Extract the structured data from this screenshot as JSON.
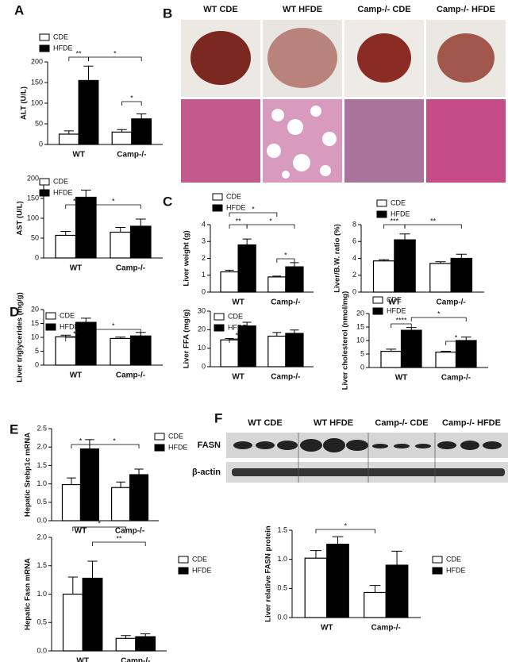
{
  "figure": {
    "panel_labels": [
      "A",
      "B",
      "C",
      "D",
      "E",
      "F"
    ],
    "histology_headers": [
      "WT CDE",
      "WT HFDE",
      "Camp-/- CDE",
      "Camp-/- HFDE"
    ],
    "blot": {
      "groups": [
        "WT CDE",
        "WT HFDE",
        "Camp-/- CDE",
        "Camp-/- HFDE"
      ],
      "rows": [
        "FASN",
        "β-actin"
      ]
    }
  },
  "chart_data": [
    {
      "type": "bar",
      "ylabel": "ALT (U/L)",
      "categories": [
        "WT",
        "Camp-/-"
      ],
      "ylim": [
        0,
        200
      ],
      "yticks": [
        0,
        50,
        100,
        150,
        200
      ],
      "series": [
        {
          "name": "CDE",
          "color": "#ffffff",
          "values": [
            25,
            30
          ],
          "errors": [
            8,
            6
          ]
        },
        {
          "name": "HFDE",
          "color": "#000000",
          "values": [
            155,
            62
          ],
          "errors": [
            35,
            12
          ]
        }
      ],
      "annotations": [
        "**",
        "*",
        "*"
      ]
    },
    {
      "type": "bar",
      "ylabel": "AST (U/L)",
      "categories": [
        "WT",
        "Camp-/-"
      ],
      "ylim": [
        0,
        200
      ],
      "yticks": [
        0,
        50,
        100,
        150,
        200
      ],
      "series": [
        {
          "name": "CDE",
          "color": "#ffffff",
          "values": [
            57,
            65
          ],
          "errors": [
            10,
            12
          ]
        },
        {
          "name": "HFDE",
          "color": "#000000",
          "values": [
            153,
            80
          ],
          "errors": [
            18,
            18
          ]
        }
      ],
      "annotations": [
        "**",
        "*"
      ]
    },
    {
      "type": "bar",
      "ylabel": "Liver weight (g)",
      "categories": [
        "WT",
        "Camp-/-"
      ],
      "ylim": [
        0,
        4
      ],
      "yticks": [
        0,
        1,
        2,
        3,
        4
      ],
      "series": [
        {
          "name": "CDE",
          "color": "#ffffff",
          "values": [
            1.2,
            0.9
          ],
          "errors": [
            0.1,
            0.05
          ]
        },
        {
          "name": "HFDE",
          "color": "#000000",
          "values": [
            2.8,
            1.5
          ],
          "errors": [
            0.35,
            0.25
          ]
        }
      ],
      "annotations": [
        "*",
        "**",
        "*",
        "*"
      ]
    },
    {
      "type": "bar",
      "ylabel": "Liver/B.W. ratio (%)",
      "categories": [
        "WT",
        "Camp-/-"
      ],
      "ylim": [
        0,
        8
      ],
      "yticks": [
        0,
        2,
        4,
        6,
        8
      ],
      "series": [
        {
          "name": "CDE",
          "color": "#ffffff",
          "values": [
            3.7,
            3.4
          ],
          "errors": [
            0.15,
            0.2
          ]
        },
        {
          "name": "HFDE",
          "color": "#000000",
          "values": [
            6.2,
            4.0
          ],
          "errors": [
            0.7,
            0.5
          ]
        }
      ],
      "annotations": [
        "***",
        "**"
      ]
    },
    {
      "type": "bar",
      "ylabel": "Liver triglycerides (mg/g)",
      "categories": [
        "WT",
        "Camp-/-"
      ],
      "ylim": [
        0,
        20
      ],
      "yticks": [
        0,
        5,
        10,
        15,
        20
      ],
      "series": [
        {
          "name": "CDE",
          "color": "#ffffff",
          "values": [
            10.2,
            9.6
          ],
          "errors": [
            0.6,
            0.5
          ]
        },
        {
          "name": "HFDE",
          "color": "#000000",
          "values": [
            15.4,
            10.5
          ],
          "errors": [
            1.5,
            1.3
          ]
        }
      ],
      "annotations": [
        "**",
        "*"
      ]
    },
    {
      "type": "bar",
      "ylabel": "Liver FFA (mg/g)",
      "categories": [
        "WT",
        "Camp-/-"
      ],
      "ylim": [
        0,
        30
      ],
      "yticks": [
        0,
        10,
        20,
        30
      ],
      "series": [
        {
          "name": "CDE",
          "color": "#ffffff",
          "values": [
            14.5,
            16.5
          ],
          "errors": [
            0.7,
            2
          ]
        },
        {
          "name": "HFDE",
          "color": "#000000",
          "values": [
            22,
            18
          ],
          "errors": [
            2,
            1.8
          ]
        }
      ],
      "annotations": [
        "**"
      ]
    },
    {
      "type": "bar",
      "ylabel": "Liver cholesterol (nmol/mg)",
      "categories": [
        "WT",
        "Camp-/-"
      ],
      "ylim": [
        0,
        20
      ],
      "yticks": [
        0,
        5,
        10,
        15,
        20
      ],
      "series": [
        {
          "name": "CDE",
          "color": "#ffffff",
          "values": [
            6,
            5.7
          ],
          "errors": [
            0.8,
            0.3
          ]
        },
        {
          "name": "HFDE",
          "color": "#000000",
          "values": [
            13.8,
            10
          ],
          "errors": [
            1.0,
            1.3
          ]
        }
      ],
      "annotations": [
        "****",
        "*",
        "*"
      ]
    },
    {
      "type": "bar",
      "ylabel": "Hepatic Srebp1c mRNA",
      "categories": [
        "WT",
        "Camp-/-"
      ],
      "ylim": [
        0,
        2.5
      ],
      "yticks": [
        {
          "value": 0,
          "label": "0.0"
        },
        0.5,
        {
          "value": 1,
          "label": "1.0"
        },
        1.5,
        {
          "value": 2,
          "label": "2.0"
        },
        2.5
      ],
      "series": [
        {
          "name": "CDE",
          "color": "#ffffff",
          "values": [
            0.98,
            0.9
          ],
          "errors": [
            0.18,
            0.15
          ]
        },
        {
          "name": "HFDE",
          "color": "#000000",
          "values": [
            1.95,
            1.25
          ],
          "errors": [
            0.25,
            0.15
          ]
        }
      ],
      "annotations": [
        "*",
        "*"
      ]
    },
    {
      "type": "bar",
      "ylabel": "Hepatic Fasn mRNA",
      "categories": [
        "WT",
        "Camp-/-"
      ],
      "ylim": [
        0,
        2
      ],
      "yticks": [
        {
          "value": 0,
          "label": "0.0"
        },
        0.5,
        {
          "value": 1,
          "label": "1.0"
        },
        1.5,
        {
          "value": 2,
          "label": "2.0"
        }
      ],
      "series": [
        {
          "name": "CDE",
          "color": "#ffffff",
          "values": [
            1.0,
            0.22
          ],
          "errors": [
            0.3,
            0.05
          ]
        },
        {
          "name": "HFDE",
          "color": "#000000",
          "values": [
            1.28,
            0.25
          ],
          "errors": [
            0.3,
            0.05
          ]
        }
      ],
      "annotations": [
        "*",
        "**"
      ]
    },
    {
      "type": "bar",
      "ylabel": "Liver relative FASN protein",
      "categories": [
        "WT",
        "Camp-/-"
      ],
      "ylim": [
        0,
        1.5
      ],
      "yticks": [
        {
          "value": 0,
          "label": "0.0"
        },
        0.5,
        {
          "value": 1,
          "label": "1.0"
        },
        1.5
      ],
      "series": [
        {
          "name": "CDE",
          "color": "#ffffff",
          "values": [
            1.02,
            0.43
          ],
          "errors": [
            0.13,
            0.12
          ]
        },
        {
          "name": "HFDE",
          "color": "#000000",
          "values": [
            1.26,
            0.9
          ],
          "errors": [
            0.13,
            0.24
          ]
        }
      ],
      "annotations": [
        "*"
      ]
    }
  ]
}
